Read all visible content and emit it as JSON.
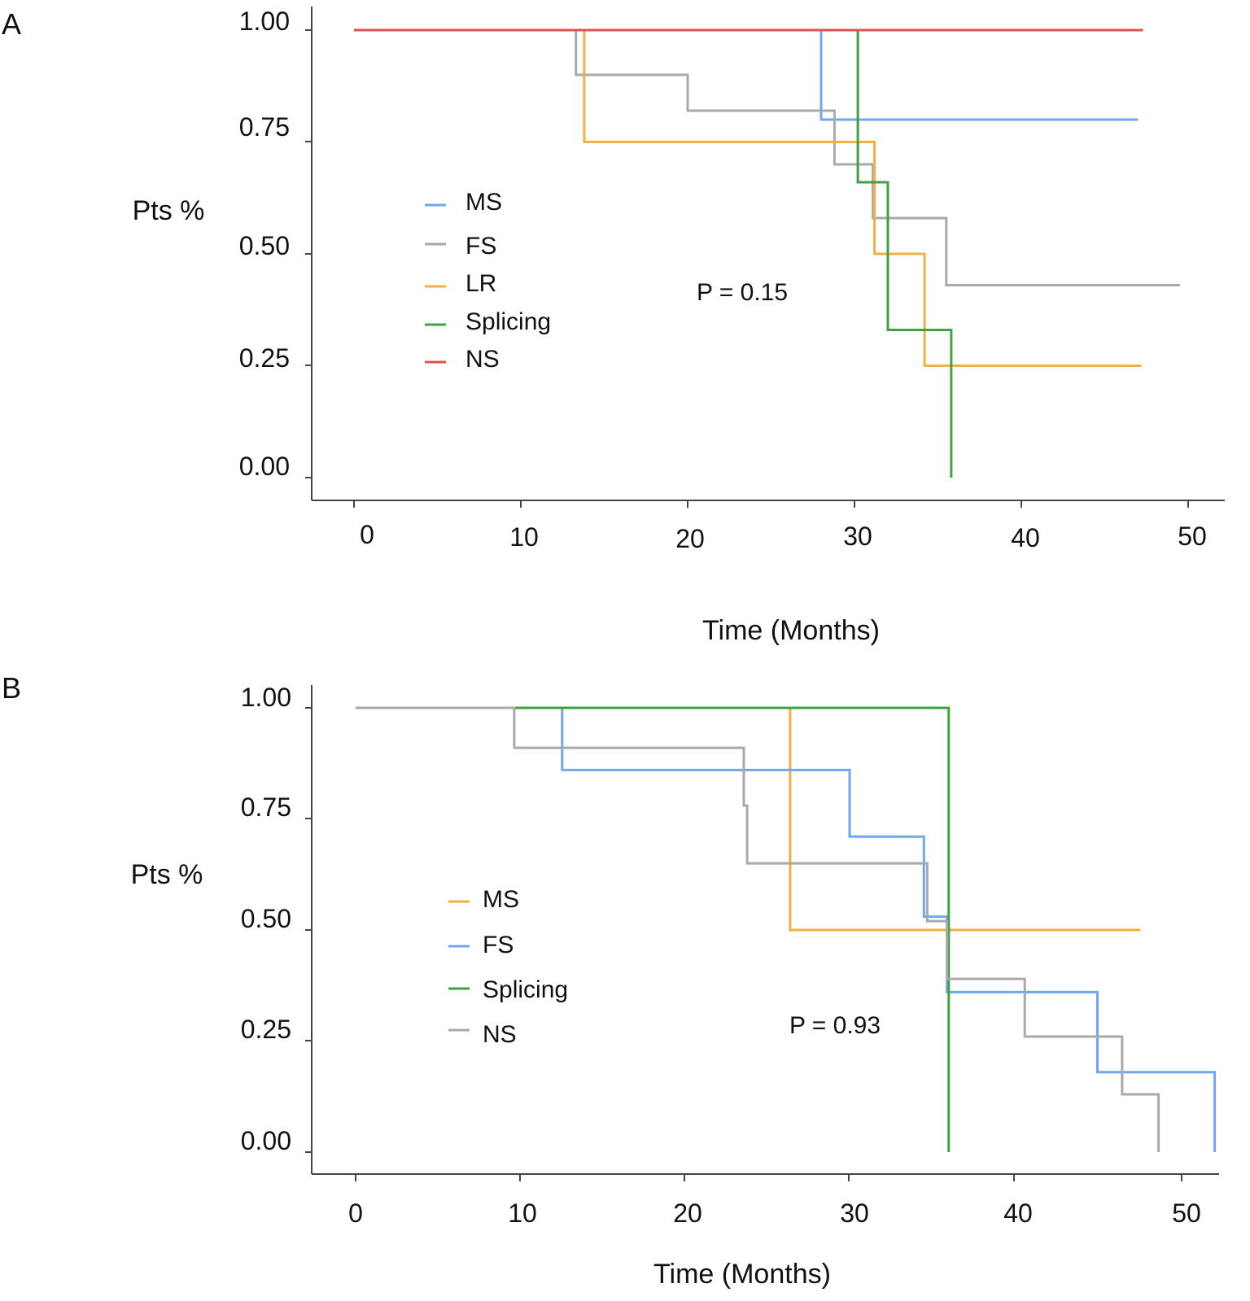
{
  "chart_data": [
    {
      "panel": "A",
      "type": "line",
      "subtype": "kaplan-meier step",
      "xlabel": "Time (Months)",
      "ylabel": "Pts %",
      "xlim": [
        0,
        50
      ],
      "ylim": [
        0,
        1
      ],
      "xticks": [
        "0",
        "10",
        "20",
        "30",
        "40",
        "50"
      ],
      "yticks": [
        "0.00",
        "0.25",
        "0.50",
        "0.75",
        "1.00"
      ],
      "annotation": "P = 0.15",
      "legend_position": "center-left",
      "series": [
        {
          "name": "MS",
          "color": "#6fa8ee",
          "x": [
            0,
            28,
            28,
            47
          ],
          "y": [
            1.0,
            1.0,
            0.8,
            0.8
          ]
        },
        {
          "name": "FS",
          "color": "#a9a9a9",
          "x": [
            0,
            13.3,
            13.3,
            20,
            20,
            28.8,
            28.8,
            31.1,
            31.1,
            35.5,
            35.5,
            49.5
          ],
          "y": [
            1.0,
            1.0,
            0.9,
            0.9,
            0.82,
            0.82,
            0.7,
            0.7,
            0.58,
            0.58,
            0.43,
            0.43
          ]
        },
        {
          "name": "LR",
          "color": "#f0b042",
          "x": [
            0,
            13.8,
            13.8,
            31.2,
            31.2,
            34.2,
            34.2,
            47.2
          ],
          "y": [
            1.0,
            1.0,
            0.75,
            0.75,
            0.5,
            0.5,
            0.25,
            0.25
          ]
        },
        {
          "name": "Splicing",
          "color": "#3fa13f",
          "x": [
            0,
            30.2,
            30.2,
            32.0,
            32.0,
            35.8,
            35.8
          ],
          "y": [
            1.0,
            1.0,
            0.66,
            0.66,
            0.33,
            0.33,
            0.0
          ]
        },
        {
          "name": "NS",
          "color": "#d9534f",
          "x": [
            0,
            47.3
          ],
          "y": [
            1.0,
            1.0
          ]
        }
      ]
    },
    {
      "panel": "B",
      "type": "line",
      "subtype": "kaplan-meier step",
      "xlabel": "Time (Months)",
      "ylabel": "Pts %",
      "xlim": [
        0,
        52
      ],
      "ylim": [
        0,
        1
      ],
      "xticks": [
        "0",
        "10",
        "20",
        "30",
        "40",
        "50"
      ],
      "yticks": [
        "0.00",
        "0.25",
        "0.50",
        "0.75",
        "1.00"
      ],
      "annotation": "P = 0.93",
      "legend_position": "center-left",
      "series": [
        {
          "name": "MS",
          "color": "#f0b042",
          "x": [
            0,
            26.3,
            26.3,
            47.5
          ],
          "y": [
            1.0,
            1.0,
            0.5,
            0.5
          ]
        },
        {
          "name": "FS",
          "color": "#6fa8ee",
          "x": [
            0,
            12.5,
            12.5,
            29.9,
            29.9,
            34.4,
            34.4,
            35.8,
            35.8,
            44.9,
            44.9,
            52.0,
            52.0
          ],
          "y": [
            1.0,
            1.0,
            0.86,
            0.86,
            0.71,
            0.71,
            0.53,
            0.53,
            0.36,
            0.36,
            0.18,
            0.18,
            0.0
          ]
        },
        {
          "name": "Splicing",
          "color": "#3fa13f",
          "x": [
            0,
            35.9,
            35.9
          ],
          "y": [
            1.0,
            1.0,
            0.0
          ]
        },
        {
          "name": "NS",
          "color": "#a9a9a9",
          "x": [
            0,
            9.6,
            9.6,
            23.5,
            23.5,
            23.7,
            23.7,
            34.6,
            34.6,
            35.8,
            35.8,
            40.5,
            40.5,
            46.4,
            46.4,
            48.6,
            48.6
          ],
          "y": [
            1.0,
            1.0,
            0.91,
            0.91,
            0.78,
            0.78,
            0.65,
            0.65,
            0.52,
            0.52,
            0.39,
            0.39,
            0.26,
            0.26,
            0.13,
            0.13,
            0.0
          ]
        }
      ]
    }
  ]
}
